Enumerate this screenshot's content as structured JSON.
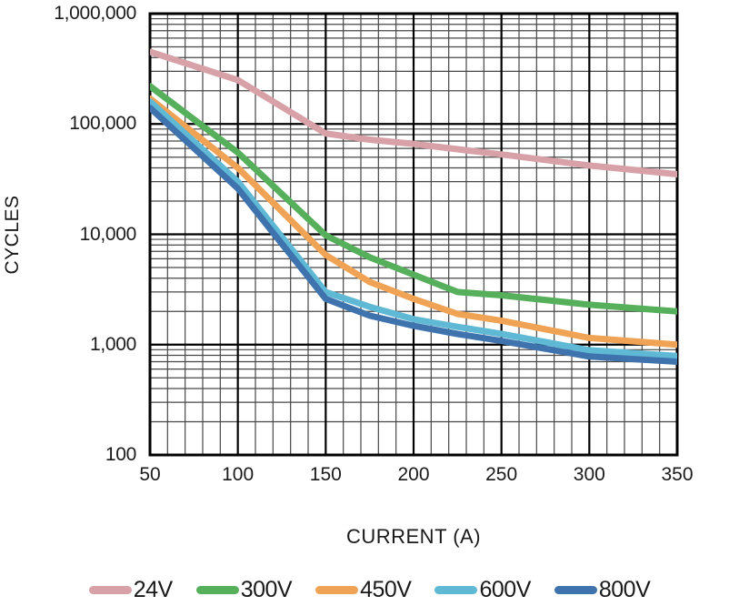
{
  "page": {
    "background": "#ffffff"
  },
  "chart_data": {
    "type": "line",
    "title": "",
    "xlabel": "CURRENT (A)",
    "ylabel": "CYCLES",
    "x_axis": {
      "min": 50,
      "max": 350,
      "major_tick_step": 50,
      "minor_tick_step": 10,
      "tick_values": [
        50,
        100,
        150,
        200,
        250,
        300,
        350
      ],
      "tick_labels": [
        "50",
        "100",
        "150",
        "200",
        "250",
        "300",
        "350"
      ]
    },
    "y_axis": {
      "scale": "log",
      "min": 100,
      "max": 1000000,
      "tick_values": [
        1000000,
        100000,
        10000,
        1000,
        100
      ],
      "tick_labels": [
        "1,000,000",
        "100,000",
        "10,000",
        "1,000",
        "100"
      ],
      "minor_gridlines": "log steps 2-9 per decade"
    },
    "grid": {
      "major_color": "#000000",
      "minor_color": "#474747",
      "border_color": "#000000"
    },
    "x": [
      50,
      100,
      150,
      175,
      200,
      225,
      250,
      300,
      350
    ],
    "series": [
      {
        "name": "24V",
        "color": "#D7A1A7",
        "values": [
          450000,
          250000,
          82000,
          72000,
          66000,
          59000,
          53000,
          42000,
          35000
        ]
      },
      {
        "name": "300V",
        "color": "#55AF5B",
        "values": [
          220000,
          55000,
          9800,
          6200,
          4300,
          3000,
          2800,
          2300,
          2000
        ]
      },
      {
        "name": "450V",
        "color": "#F0A355",
        "values": [
          170000,
          40000,
          6500,
          3700,
          2600,
          1900,
          1650,
          1150,
          1000
        ]
      },
      {
        "name": "600V",
        "color": "#5FB9D5",
        "values": [
          160000,
          30000,
          3000,
          2200,
          1700,
          1450,
          1250,
          890,
          790
        ]
      },
      {
        "name": "800V",
        "color": "#3F73AD",
        "values": [
          140000,
          26000,
          2600,
          1830,
          1480,
          1250,
          1080,
          780,
          700
        ]
      }
    ],
    "legend": {
      "position": "bottom",
      "entries": [
        "24V",
        "300V",
        "450V",
        "600V",
        "800V"
      ]
    }
  }
}
